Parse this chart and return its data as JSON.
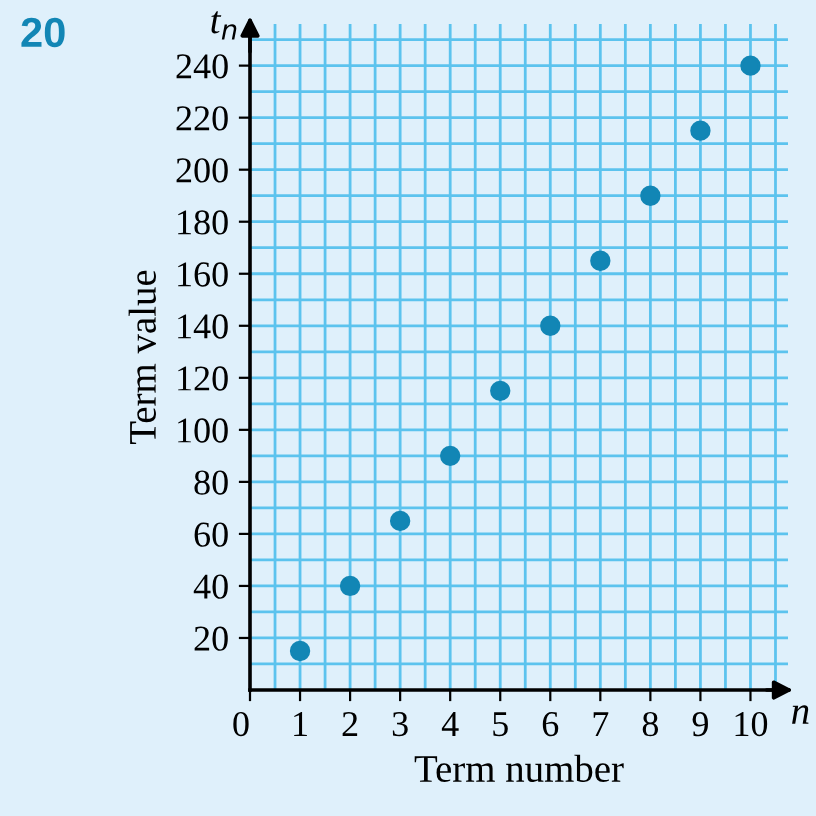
{
  "chart_data": {
    "type": "scatter",
    "xlabel": "Term number",
    "ylabel": "Term value",
    "annotations": [
      "20",
      "t$_{n}$",
      "n"
    ],
    "x": [
      1,
      2,
      3,
      4,
      5,
      6,
      7,
      8,
      9,
      10
    ],
    "series": [
      {
        "color": "#1286b5",
        "values": [
          15,
          40,
          65,
          90,
          115,
          140,
          165,
          190,
          215,
          240
        ]
      }
    ],
    "xlim": [
      0,
      10.75
    ],
    "ylim": [
      0,
      256
    ],
    "xticks": [
      {
        "value": 0,
        "label": "0"
      },
      1,
      2,
      3,
      4,
      5,
      6,
      7,
      8,
      9,
      10
    ],
    "yticks": [
      20,
      40,
      60,
      80,
      100,
      120,
      140,
      160,
      180,
      200,
      220,
      240
    ],
    "grid": true,
    "marker": "circle"
  }
}
